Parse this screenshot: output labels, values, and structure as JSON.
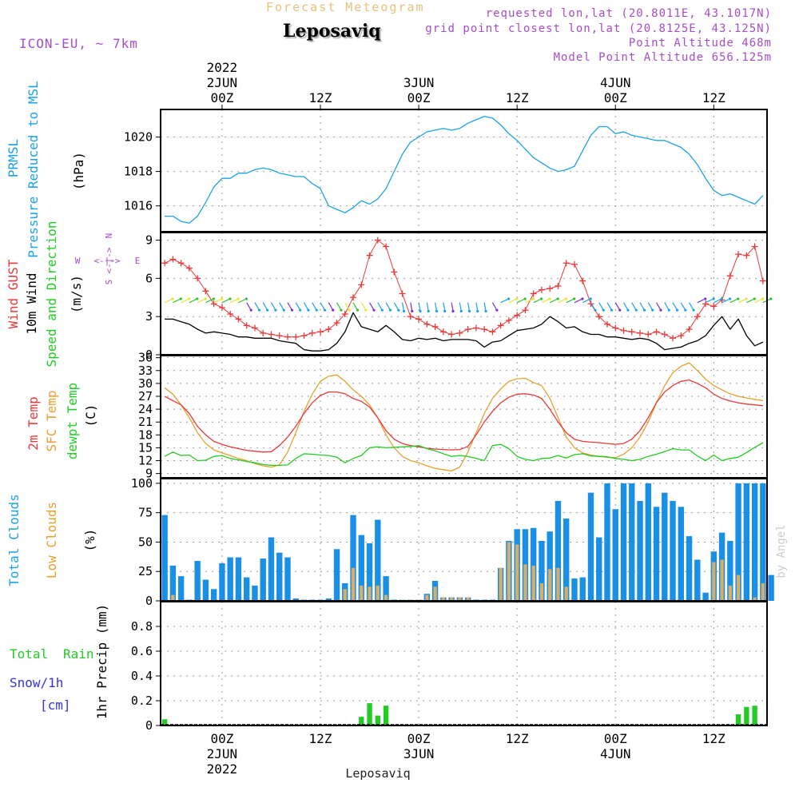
{
  "header": {
    "title": "Forecast Meteogram",
    "location": "Leposaviq",
    "model": "ICON-EU, ~ 7km",
    "requested": "requested lon,lat (20.8011E, 43.1017N)",
    "grid_point": "grid point closest lon,lat (20.8125E, 43.125N)",
    "point_altitude": "Point Altitude 468m",
    "model_altitude": "Model Point Altitude 656.125m",
    "footer_location": "Leposaviq",
    "watermark": "by Angel"
  },
  "colors": {
    "pressure": "#1aa3e6",
    "gust": "#e83a3a",
    "wind10m": "#000000",
    "windarrow": "#22cc22",
    "temp2m": "#e83a3a",
    "sfctemp": "#e8a030",
    "dewpt": "#22cc22",
    "total_clouds": "#1a8fe6",
    "low_clouds": "#d7ad6a",
    "rain": "#22cc22",
    "snow": "#3333dd",
    "direction": "#a64dc8"
  },
  "time_axis": {
    "top_labels": [
      {
        "t": 7,
        "lines": [
          "2022",
          "2JUN",
          "00Z"
        ]
      },
      {
        "t": 19,
        "lines": [
          "12Z"
        ]
      },
      {
        "t": 31,
        "lines": [
          "3JUN",
          "00Z"
        ]
      },
      {
        "t": 43,
        "lines": [
          "12Z"
        ]
      },
      {
        "t": 55,
        "lines": [
          "4JUN",
          "00Z"
        ]
      },
      {
        "t": 67,
        "lines": [
          "12Z"
        ]
      }
    ],
    "bottom_labels": [
      {
        "t": 7,
        "lines": [
          "00Z",
          "2JUN",
          "2022"
        ]
      },
      {
        "t": 19,
        "lines": [
          "12Z"
        ]
      },
      {
        "t": 31,
        "lines": [
          "00Z",
          "3JUN"
        ]
      },
      {
        "t": 43,
        "lines": [
          "12Z"
        ]
      },
      {
        "t": 55,
        "lines": [
          "00Z",
          "4JUN"
        ]
      },
      {
        "t": 67,
        "lines": [
          "12Z"
        ]
      }
    ]
  },
  "chart_data": [
    {
      "type": "line",
      "panel": "pressure",
      "ylabels": [
        "PRMSL",
        "Pressure Reduced to MSL"
      ],
      "unit": "(hPa)",
      "yticks": [
        1016,
        1018,
        1020
      ],
      "ylim": [
        1014.5,
        1021.6
      ],
      "series": [
        {
          "name": "PRMSL",
          "values": [
            1015.4,
            1015.4,
            1015.1,
            1015.0,
            1015.4,
            1016.2,
            1017.1,
            1017.6,
            1017.6,
            1017.9,
            1017.9,
            1018.1,
            1018.2,
            1018.1,
            1017.9,
            1017.8,
            1017.7,
            1017.7,
            1017.3,
            1017.0,
            1016.0,
            1015.8,
            1015.6,
            1015.9,
            1016.3,
            1016.1,
            1016.4,
            1017.0,
            1018.0,
            1019.0,
            1019.7,
            1020.0,
            1020.3,
            1020.4,
            1020.5,
            1020.4,
            1020.5,
            1020.8,
            1021.0,
            1021.2,
            1021.1,
            1020.7,
            1020.2,
            1019.8,
            1019.3,
            1018.8,
            1018.5,
            1018.2,
            1018.0,
            1018.1,
            1018.3,
            1019.2,
            1020.1,
            1020.6,
            1020.6,
            1020.2,
            1020.3,
            1020.1,
            1020.0,
            1019.9,
            1019.8,
            1019.8,
            1019.6,
            1019.4,
            1019.0,
            1018.4,
            1017.6,
            1016.9,
            1016.6,
            1016.7,
            1016.5,
            1016.3,
            1016.1,
            1016.6
          ]
        }
      ]
    },
    {
      "type": "line",
      "panel": "wind",
      "ylabels": [
        "Wind GUST",
        "10m Wind",
        "Speed and Direction"
      ],
      "unit": "(m/s)",
      "yticks": [
        0,
        3,
        6,
        9
      ],
      "ylim": [
        0,
        9.6
      ],
      "compass": {
        "n": "N",
        "s": "S",
        "w": "W",
        "e": "E",
        "arrow": "<-|->"
      },
      "series": [
        {
          "name": "Wind GUST",
          "values": [
            7.2,
            7.5,
            7.2,
            6.8,
            6.0,
            5.0,
            4.0,
            3.7,
            3.2,
            2.8,
            2.3,
            2.1,
            1.7,
            1.6,
            1.5,
            1.4,
            1.4,
            1.5,
            1.7,
            1.8,
            2.0,
            2.5,
            3.2,
            4.5,
            5.5,
            7.8,
            9.0,
            8.5,
            6.5,
            4.8,
            3.0,
            2.8,
            2.4,
            2.2,
            1.8,
            1.6,
            1.7,
            2.0,
            2.1,
            2.0,
            1.8,
            2.3,
            2.7,
            3.1,
            3.5,
            4.8,
            5.1,
            5.2,
            5.4,
            7.2,
            7.1,
            5.8,
            4.0,
            3.0,
            2.4,
            2.1,
            1.9,
            1.8,
            1.7,
            1.6,
            1.8,
            1.6,
            1.3,
            1.5,
            2.0,
            3.0,
            4.0,
            3.8,
            4.3,
            6.2,
            7.9,
            7.8,
            8.5,
            5.8
          ]
        },
        {
          "name": "10m Wind",
          "values": [
            2.8,
            2.8,
            2.6,
            2.4,
            2.0,
            1.7,
            1.8,
            1.7,
            1.6,
            1.4,
            1.4,
            1.3,
            1.3,
            1.3,
            1.1,
            1.0,
            0.9,
            0.4,
            0.3,
            0.3,
            0.4,
            0.9,
            1.8,
            3.3,
            2.2,
            2.0,
            1.8,
            2.3,
            1.8,
            1.2,
            1.1,
            1.3,
            1.2,
            1.3,
            1.1,
            1.2,
            1.2,
            1.2,
            1.1,
            0.6,
            1.0,
            1.1,
            1.5,
            1.9,
            2.0,
            2.1,
            2.4,
            3.0,
            2.6,
            2.1,
            2.2,
            1.8,
            1.6,
            1.6,
            1.4,
            1.4,
            1.3,
            1.2,
            1.3,
            1.2,
            0.9,
            0.4,
            0.5,
            0.6,
            0.9,
            1.1,
            1.5,
            2.3,
            3.0,
            2.0,
            2.8,
            1.5,
            0.7,
            1.0
          ]
        }
      ]
    },
    {
      "type": "line",
      "panel": "temperature",
      "ylabels": [
        "2m Temp",
        "SFC Temp",
        "dewpt Temp"
      ],
      "unit": "(C)",
      "yticks": [
        9,
        12,
        15,
        18,
        21,
        24,
        27,
        30,
        33,
        36
      ],
      "ylim": [
        8,
        36.5
      ],
      "series": [
        {
          "name": "2m Temp",
          "values": [
            27,
            26,
            25,
            23,
            20,
            18,
            16.5,
            15.8,
            15.2,
            14.8,
            14.4,
            14.2,
            14.0,
            14.1,
            15.5,
            17.5,
            20,
            23,
            25.5,
            27.2,
            28,
            28,
            27.6,
            26.5,
            25.8,
            24.5,
            22,
            19,
            17,
            16,
            15.5,
            15.2,
            14.9,
            14.7,
            14.6,
            14.5,
            14.6,
            15.3,
            18,
            21,
            23.5,
            25.5,
            26.8,
            27.5,
            27.6,
            27.3,
            26.5,
            24,
            21,
            18.5,
            17,
            16.5,
            16.3,
            16.2,
            16.0,
            15.8,
            16,
            17,
            19,
            22,
            25.5,
            28,
            29.5,
            30.5,
            30.8,
            30,
            29,
            27.5,
            26.5,
            25.9,
            25.5,
            25.2,
            25.0,
            24.8
          ]
        },
        {
          "name": "SFC Temp",
          "values": [
            29,
            27.5,
            25,
            22,
            18.5,
            16,
            14.5,
            13.8,
            13.2,
            12.5,
            12,
            11.3,
            10.8,
            10.5,
            11,
            14,
            18.5,
            23.5,
            27.5,
            30.5,
            31.7,
            32,
            30.5,
            28.5,
            27,
            25,
            22,
            18,
            15,
            13,
            12,
            11.5,
            10.8,
            10.2,
            9.9,
            9.6,
            10.5,
            14,
            18.5,
            23,
            26.5,
            28.7,
            30.5,
            31.1,
            31.2,
            30.2,
            29.5,
            26.5,
            22,
            17.5,
            15,
            13.8,
            13.3,
            13.0,
            12.8,
            12.7,
            13.5,
            15,
            17.5,
            21,
            25.5,
            29.5,
            32.5,
            34,
            34.8,
            33,
            31,
            29.5,
            28.5,
            27.6,
            27.0,
            26.6,
            26.3,
            26.0
          ]
        },
        {
          "name": "dewpt Temp",
          "values": [
            13,
            14,
            13.2,
            13.3,
            12,
            12.1,
            13,
            13.2,
            12.5,
            12.2,
            11.8,
            11.5,
            11.1,
            10.9,
            10.9,
            11,
            12.5,
            13.6,
            13.5,
            13.3,
            13.2,
            12.8,
            11.5,
            12.5,
            13.2,
            15,
            15.2,
            15.0,
            15.1,
            15.2,
            15.3,
            15.5,
            14.8,
            14.3,
            13.6,
            13.0,
            13.2,
            13.0,
            12.5,
            12.0,
            15.5,
            15.8,
            14.8,
            13.0,
            12.3,
            12.0,
            12.5,
            12.6,
            13.2,
            12.6,
            13.4,
            13.6,
            13.1,
            13.0,
            12.9,
            12.5,
            12.3,
            12.0,
            12.3,
            13.0,
            13.5,
            14.1,
            14.8,
            14.5,
            14.5,
            13.1,
            12.0,
            13.3,
            12.0,
            12.5,
            12.8,
            13.9,
            15.1,
            16.2
          ]
        }
      ]
    },
    {
      "type": "bar",
      "panel": "clouds",
      "ylabels": [
        "Total Clouds",
        "Low Clouds"
      ],
      "unit": "(%)",
      "yticks": [
        0,
        25,
        50,
        75,
        100
      ],
      "ylim": [
        0,
        104
      ],
      "series": [
        {
          "name": "Total Clouds",
          "values": [
            73,
            30,
            21,
            1,
            34,
            18,
            10,
            32,
            37,
            37,
            20,
            13,
            36,
            54,
            41,
            37,
            2,
            1,
            1,
            1,
            2,
            44,
            15,
            73,
            56,
            49,
            69,
            21,
            1,
            1,
            1,
            1,
            6,
            17,
            3,
            3,
            3,
            3,
            1,
            1,
            1,
            28,
            51,
            61,
            61,
            62,
            51,
            59,
            85,
            70,
            19,
            20,
            92,
            54,
            100,
            78,
            100,
            100,
            85,
            100,
            80,
            92,
            85,
            80,
            55,
            35,
            7,
            42,
            58,
            51,
            100,
            100,
            100,
            100,
            22
          ]
        },
        {
          "name": "Low Clouds",
          "values": [
            0,
            5,
            0,
            0,
            0,
            0,
            0,
            0,
            0,
            0,
            0,
            0,
            0,
            0,
            0,
            0,
            0,
            0,
            0,
            0,
            0,
            0,
            10,
            28,
            13,
            12,
            13,
            5,
            0,
            1,
            1,
            1,
            5,
            12,
            3,
            3,
            3,
            3,
            0,
            0,
            0,
            28,
            50,
            48,
            31,
            30,
            15,
            27,
            28,
            12,
            0,
            0,
            0,
            0,
            0,
            0,
            0,
            0,
            0,
            0,
            0,
            0,
            0,
            0,
            0,
            0,
            0,
            33,
            35,
            13,
            22,
            0,
            3,
            15,
            0
          ]
        }
      ]
    },
    {
      "type": "bar",
      "panel": "precip",
      "ylabels": [
        "1hr Precip (mm)"
      ],
      "left_labels": [
        "Total",
        "Rain",
        "Snow/1h",
        "[cm]"
      ],
      "yticks": [
        "0",
        "0.2",
        "0.4",
        "0.6",
        "0.8"
      ],
      "ylim": [
        0,
        1.0
      ],
      "series": [
        {
          "name": "Total Rain",
          "values": [
            0.05,
            0,
            0,
            0,
            0,
            0,
            0,
            0,
            0,
            0,
            0,
            0,
            0,
            0,
            0,
            0,
            0,
            0,
            0,
            0,
            0,
            0,
            0,
            0,
            0.07,
            0.18,
            0.08,
            0.16,
            0,
            0,
            0,
            0,
            0,
            0,
            0,
            0,
            0,
            0,
            0,
            0,
            0,
            0,
            0,
            0,
            0,
            0,
            0,
            0,
            0,
            0,
            0,
            0,
            0,
            0,
            0,
            0,
            0,
            0,
            0,
            0,
            0,
            0,
            0,
            0,
            0,
            0,
            0,
            0,
            0,
            0,
            0.09,
            0.15,
            0.16,
            0,
            0
          ]
        }
      ]
    }
  ]
}
